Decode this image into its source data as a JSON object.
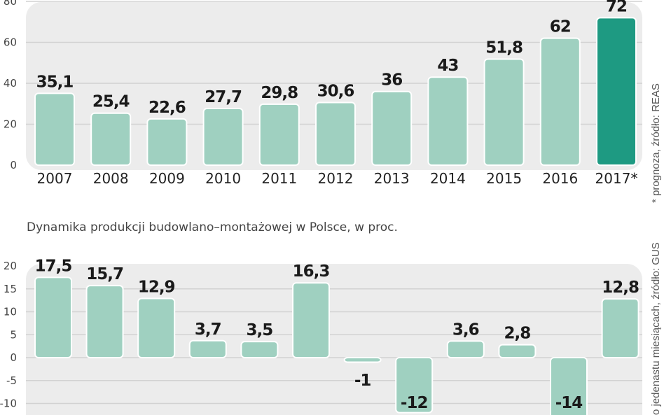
{
  "chart_data": [
    {
      "type": "bar",
      "categories": [
        "2007",
        "2008",
        "2009",
        "2010",
        "2011",
        "2012",
        "2013",
        "2014",
        "2015",
        "2016",
        "2017*"
      ],
      "values": [
        35.1,
        25.4,
        22.6,
        27.7,
        29.8,
        30.6,
        36,
        43,
        51.8,
        62,
        72
      ],
      "value_labels": [
        "35,1",
        "25,4",
        "22,6",
        "27,7",
        "29,8",
        "30,6",
        "36",
        "43",
        "51,8",
        "62",
        "72"
      ],
      "yticks": [
        "0",
        "20",
        "40",
        "60",
        "80"
      ],
      "ylim": [
        0,
        80
      ],
      "grid": true,
      "note": "* prognoza, źródło: REAS",
      "colors": {
        "bar": "#9fd0c0",
        "highlight": "#1e9a82",
        "panel": "#ececec"
      }
    },
    {
      "type": "bar",
      "title": "Dynamika produkcji budowlano–montażowej w Polsce, w proc.",
      "values": [
        17.5,
        15.7,
        12.9,
        3.7,
        3.5,
        16.3,
        -1,
        -12,
        3.6,
        2.8,
        -14,
        12.8
      ],
      "value_labels": [
        "17,5",
        "15,7",
        "12,9",
        "3,7",
        "3,5",
        "16,3",
        "-1",
        "-12",
        "3,6",
        "2,8",
        "-14",
        "12,8"
      ],
      "yticks": [
        "20",
        "15",
        "10",
        "5",
        "0",
        "-5",
        "-10"
      ],
      "ylim": [
        -10,
        20
      ],
      "grid": true,
      "note": "o jedenastu miesiącach, źródło: GUS",
      "colors": {
        "bar": "#9fd0c0",
        "panel": "#ececec"
      }
    }
  ]
}
